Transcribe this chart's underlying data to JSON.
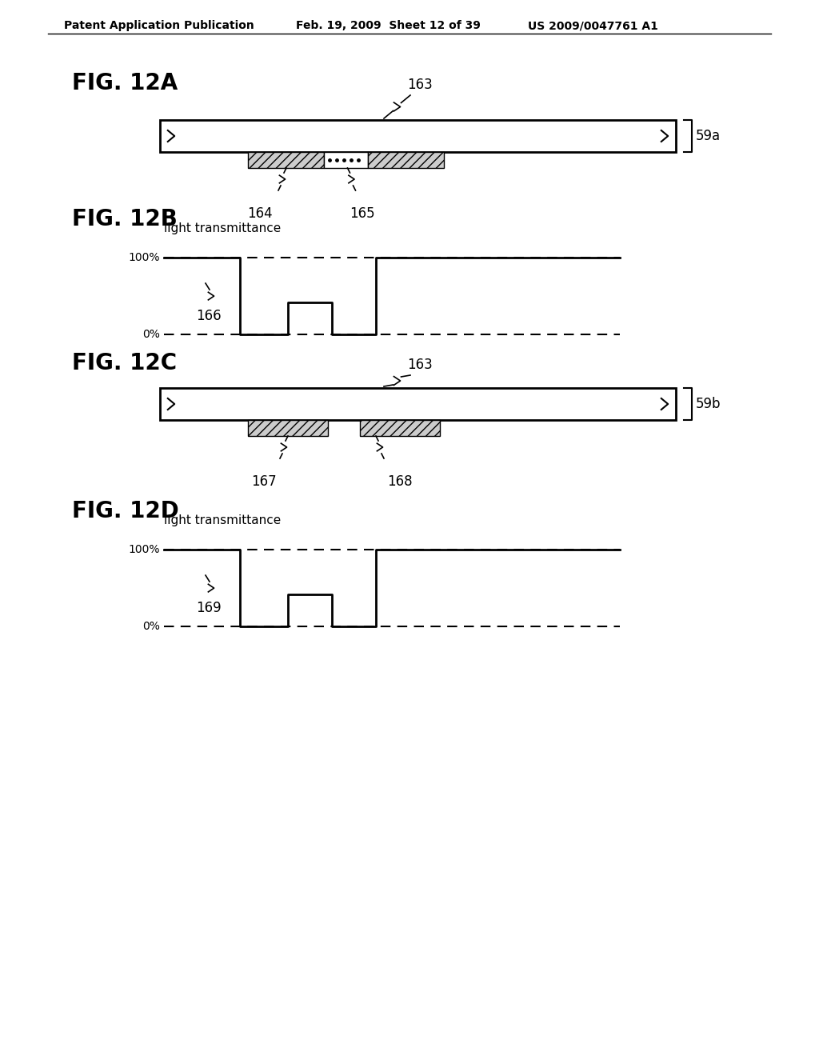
{
  "header_left": "Patent Application Publication",
  "header_mid": "Feb. 19, 2009  Sheet 12 of 39",
  "header_right": "US 2009/0047761 A1",
  "background_color": "#ffffff",
  "fig_labels": [
    "FIG. 12A",
    "FIG. 12B",
    "FIG. 12C",
    "FIG. 12D"
  ],
  "annotations_12A": {
    "label_163": "163",
    "label_164": "164",
    "label_165": "165",
    "label_59a": "59a"
  },
  "annotations_12B": {
    "label_100": "100%",
    "label_0": "0%",
    "label_166": "166",
    "ylabel": "light transmittance"
  },
  "annotations_12C": {
    "label_163": "163",
    "label_167": "167",
    "label_168": "168",
    "label_59b": "59b"
  },
  "annotations_12D": {
    "label_100": "100%",
    "label_0": "0%",
    "label_169": "169",
    "ylabel": "light transmittance"
  }
}
